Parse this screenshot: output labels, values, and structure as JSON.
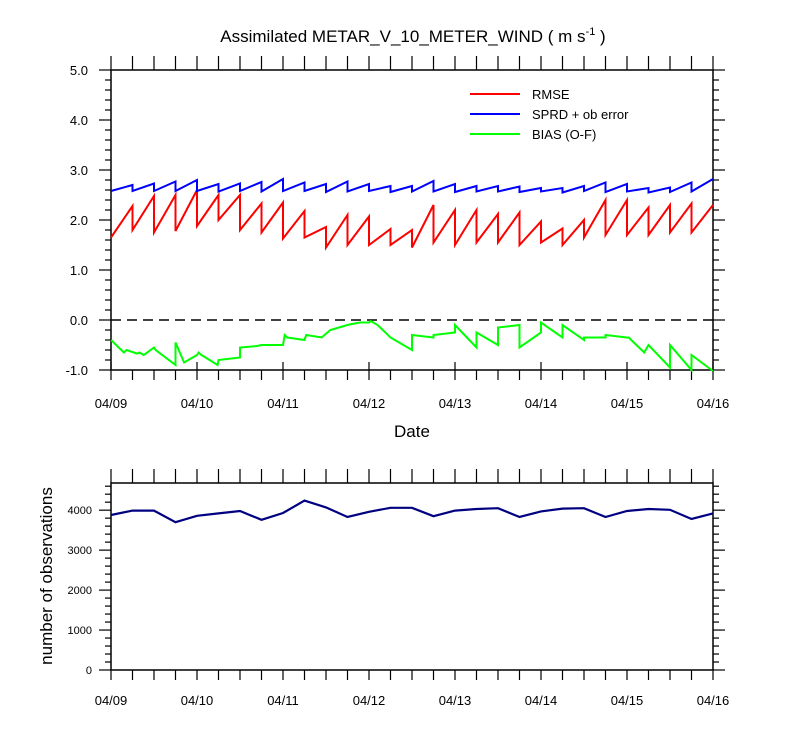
{
  "chart_data": [
    {
      "type": "line",
      "title_main": "Assimilated METAR_V_10_METER_WIND ( m s",
      "title_sup": "-1",
      "title_end": " )",
      "xlabel": "Date",
      "ylabel": "",
      "x_tick_labels": [
        "04/09",
        "04/10",
        "04/11",
        "04/12",
        "04/13",
        "04/14",
        "04/15",
        "04/16"
      ],
      "y_tick_labels": [
        "5.0",
        "4.0",
        "3.0",
        "2.0",
        "1.0",
        "0.0",
        "-1.0"
      ],
      "ylim": [
        -1.0,
        5.0
      ],
      "xlim_days": [
        0,
        7
      ],
      "zero_line": "dashed",
      "legend": "top-right",
      "series": [
        {
          "name": "RMSE",
          "color": "#ff0000",
          "x": [
            0,
            0.25,
            0.25,
            0.5,
            0.5,
            0.75,
            0.75,
            1,
            1,
            1.25,
            1.25,
            1.5,
            1.5,
            1.75,
            1.75,
            2,
            2,
            2.25,
            2.25,
            2.5,
            2.5,
            2.75,
            2.75,
            3,
            3,
            3.25,
            3.25,
            3.5,
            3.5,
            3.75,
            3.75,
            4,
            4,
            4.25,
            4.25,
            4.5,
            4.5,
            4.75,
            4.75,
            5,
            5,
            5.25,
            5.25,
            5.5,
            5.5,
            5.75,
            5.75,
            6,
            6,
            6.25,
            6.25,
            6.5,
            6.5,
            6.75,
            6.75,
            7
          ],
          "y": [
            1.65,
            2.28,
            1.8,
            2.48,
            1.75,
            2.5,
            1.78,
            2.6,
            1.88,
            2.5,
            2.0,
            2.5,
            1.8,
            2.33,
            1.75,
            2.35,
            1.63,
            2.18,
            1.65,
            1.86,
            1.45,
            2.1,
            1.5,
            2.07,
            1.5,
            1.82,
            1.5,
            1.8,
            1.45,
            2.3,
            1.55,
            2.2,
            1.5,
            2.2,
            1.55,
            2.12,
            1.55,
            2.15,
            1.5,
            1.97,
            1.55,
            1.83,
            1.5,
            2.0,
            1.65,
            2.4,
            1.7,
            2.4,
            1.7,
            2.25,
            1.7,
            2.3,
            1.75,
            2.33,
            1.75,
            2.3
          ]
        },
        {
          "name": "SPRD + ob error",
          "color": "#0000ff",
          "x": [
            0,
            0.25,
            0.25,
            0.5,
            0.5,
            0.75,
            0.75,
            1,
            1,
            1.25,
            1.25,
            1.5,
            1.5,
            1.75,
            1.75,
            2,
            2,
            2.25,
            2.25,
            2.5,
            2.5,
            2.75,
            2.75,
            3,
            3,
            3.25,
            3.25,
            3.5,
            3.5,
            3.75,
            3.75,
            4,
            4,
            4.25,
            4.25,
            4.5,
            4.5,
            4.75,
            4.75,
            5,
            5,
            5.25,
            5.25,
            5.5,
            5.5,
            5.75,
            5.75,
            6,
            6,
            6.25,
            6.25,
            6.5,
            6.5,
            6.75,
            6.75,
            7
          ],
          "y": [
            2.58,
            2.7,
            2.58,
            2.73,
            2.58,
            2.77,
            2.58,
            2.8,
            2.58,
            2.72,
            2.57,
            2.73,
            2.58,
            2.76,
            2.57,
            2.82,
            2.58,
            2.75,
            2.58,
            2.72,
            2.56,
            2.77,
            2.57,
            2.72,
            2.58,
            2.68,
            2.56,
            2.68,
            2.57,
            2.78,
            2.57,
            2.72,
            2.56,
            2.68,
            2.57,
            2.68,
            2.57,
            2.67,
            2.56,
            2.64,
            2.57,
            2.64,
            2.55,
            2.68,
            2.58,
            2.75,
            2.56,
            2.72,
            2.57,
            2.64,
            2.55,
            2.65,
            2.56,
            2.75,
            2.57,
            2.82
          ]
        },
        {
          "name": "BIAS (O-F)",
          "color": "#00ff00",
          "x": [
            0,
            0.15,
            0.18,
            0.3,
            0.33,
            0.38,
            0.5,
            0.52,
            0.75,
            0.75,
            0.85,
            1,
            1.02,
            1.05,
            1.1,
            1.24,
            1.25,
            1.5,
            1.5,
            1.7,
            1.75,
            2,
            2.02,
            2.05,
            2.25,
            2.27,
            2.45,
            2.55,
            2.75,
            2.8,
            2.9,
            3,
            3.02,
            3.1,
            3.25,
            3.5,
            3.5,
            3.75,
            3.75,
            4,
            4,
            4.25,
            4.25,
            4.5,
            4.5,
            4.75,
            4.75,
            5,
            5,
            5.25,
            5.25,
            5.5,
            5.5,
            5.75,
            5.75,
            6,
            6.02,
            6.2,
            6.25,
            6.5,
            6.5,
            6.75,
            6.75,
            7
          ],
          "y": [
            -0.4,
            -0.65,
            -0.6,
            -0.67,
            -0.65,
            -0.7,
            -0.55,
            -0.6,
            -0.9,
            -0.45,
            -0.85,
            -0.7,
            -0.65,
            -0.7,
            -0.75,
            -0.9,
            -0.8,
            -0.75,
            -0.55,
            -0.52,
            -0.5,
            -0.5,
            -0.3,
            -0.35,
            -0.4,
            -0.3,
            -0.35,
            -0.2,
            -0.1,
            -0.08,
            -0.05,
            -0.05,
            -0.02,
            -0.1,
            -0.35,
            -0.6,
            -0.3,
            -0.35,
            -0.3,
            -0.25,
            -0.1,
            -0.55,
            -0.25,
            -0.5,
            -0.15,
            -0.1,
            -0.55,
            -0.25,
            -0.05,
            -0.35,
            -0.1,
            -0.4,
            -0.35,
            -0.35,
            -0.3,
            -0.35,
            -0.35,
            -0.65,
            -0.5,
            -0.95,
            -0.5,
            -1.0,
            -0.7,
            -1.02
          ]
        }
      ]
    },
    {
      "type": "line",
      "title": "",
      "xlabel": "",
      "ylabel": "number of observations",
      "x_tick_labels": [
        "04/09",
        "04/10",
        "04/11",
        "04/12",
        "04/13",
        "04/14",
        "04/15",
        "04/16"
      ],
      "y_tick_labels": [
        "4000",
        "3000",
        "2000",
        "1000",
        "0"
      ],
      "ylim": [
        0,
        4680
      ],
      "xlim_days": [
        0,
        7
      ],
      "series": [
        {
          "name": "",
          "color": "#000080",
          "x": [
            0,
            0.25,
            0.5,
            0.75,
            1,
            1.25,
            1.5,
            1.75,
            2,
            2.25,
            2.5,
            2.75,
            3,
            3.25,
            3.5,
            3.75,
            4,
            4.25,
            4.5,
            4.75,
            5,
            5.25,
            5.5,
            5.75,
            6,
            6.25,
            6.5,
            6.75,
            7
          ],
          "y": [
            3880,
            3990,
            3990,
            3700,
            3860,
            3920,
            3980,
            3760,
            3930,
            4240,
            4070,
            3830,
            3960,
            4060,
            4060,
            3850,
            3990,
            4030,
            4050,
            3830,
            3970,
            4040,
            4050,
            3830,
            3980,
            4030,
            4010,
            3780,
            3920
          ]
        }
      ]
    }
  ]
}
